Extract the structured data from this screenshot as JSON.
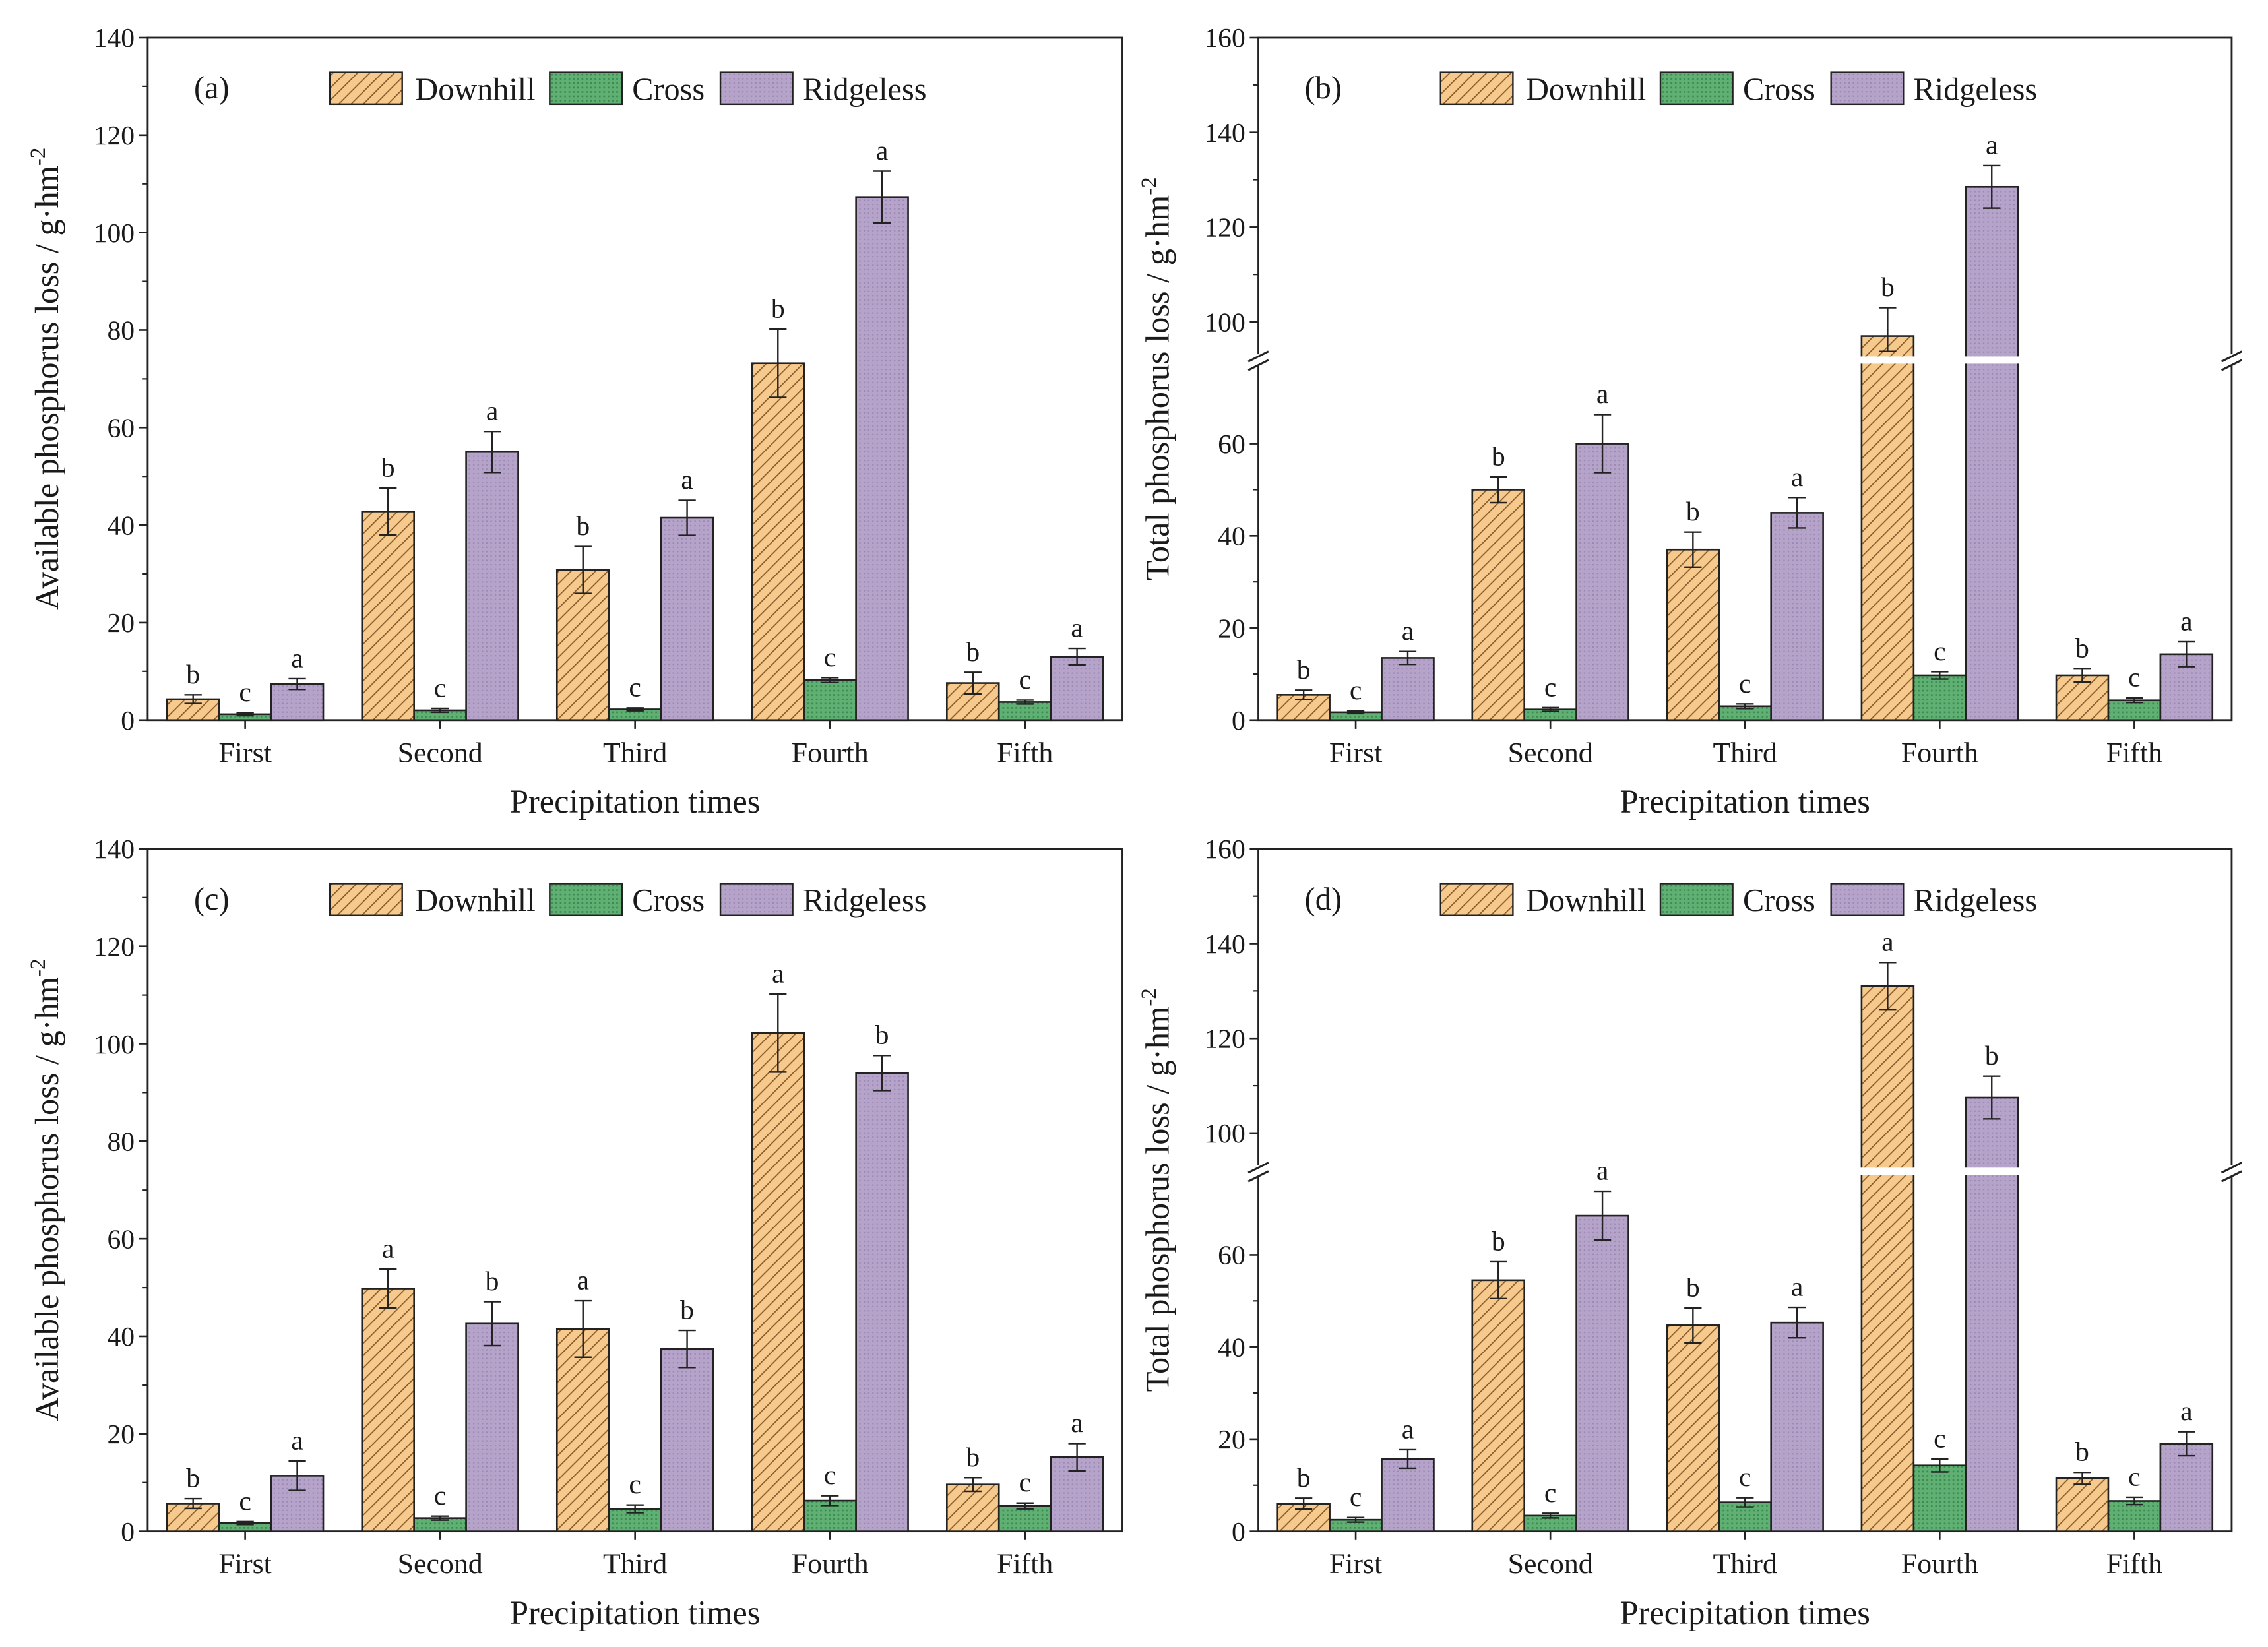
{
  "chart_data": [
    {
      "panel": "(a)",
      "type": "bar",
      "categories": [
        "First",
        "Second",
        "Third",
        "Fourth",
        "Fifth"
      ],
      "xlabel": "Precipitation times",
      "ylabel": "Available phosphorus loss / g·hm",
      "ylabel_sup": "-2",
      "ylim": [
        0,
        140
      ],
      "yticks": [
        0,
        20,
        40,
        60,
        80,
        100,
        120,
        140
      ],
      "axis_break": null,
      "series": [
        {
          "name": "Downhill",
          "values": [
            4.3,
            42.8,
            30.8,
            73.2,
            7.6
          ],
          "errors": [
            0.9,
            4.8,
            4.8,
            7.0,
            2.2
          ],
          "letters": [
            "b",
            "b",
            "b",
            "b",
            "b"
          ]
        },
        {
          "name": "Cross",
          "values": [
            1.2,
            2.0,
            2.2,
            8.2,
            3.7
          ],
          "errors": [
            0.3,
            0.4,
            0.3,
            0.5,
            0.4
          ],
          "letters": [
            "c",
            "c",
            "c",
            "c",
            "c"
          ]
        },
        {
          "name": "Ridgeless",
          "values": [
            7.4,
            55.0,
            41.5,
            107.3,
            13.0
          ],
          "errors": [
            1.1,
            4.2,
            3.6,
            5.3,
            1.7
          ],
          "letters": [
            "a",
            "a",
            "a",
            "a",
            "a"
          ]
        }
      ]
    },
    {
      "panel": "(b)",
      "type": "bar",
      "categories": [
        "First",
        "Second",
        "Third",
        "Fourth",
        "Fifth"
      ],
      "xlabel": "Precipitation times",
      "ylabel": "Total phosphorus loss / g·hm",
      "ylabel_sup": "-2",
      "ylim": [
        0,
        160
      ],
      "yticks": [
        0,
        20,
        40,
        60,
        100,
        120,
        140,
        160
      ],
      "axis_break": [
        75,
        95
      ],
      "series": [
        {
          "name": "Downhill",
          "values": [
            5.5,
            50.0,
            37.0,
            97.0,
            9.7
          ],
          "errors": [
            1.0,
            2.8,
            3.8,
            6.0,
            1.4
          ],
          "letters": [
            "b",
            "b",
            "b",
            "b",
            "b"
          ]
        },
        {
          "name": "Cross",
          "values": [
            1.7,
            2.3,
            3.0,
            9.7,
            4.3
          ],
          "errors": [
            0.3,
            0.4,
            0.5,
            0.8,
            0.5
          ],
          "letters": [
            "c",
            "c",
            "c",
            "c",
            "c"
          ]
        },
        {
          "name": "Ridgeless",
          "values": [
            13.5,
            60.0,
            45.0,
            128.5,
            14.3
          ],
          "errors": [
            1.4,
            6.3,
            3.3,
            4.5,
            2.7
          ],
          "letters": [
            "a",
            "a",
            "a",
            "a",
            "a"
          ]
        }
      ]
    },
    {
      "panel": "(c)",
      "type": "bar",
      "categories": [
        "First",
        "Second",
        "Third",
        "Fourth",
        "Fifth"
      ],
      "xlabel": "Precipitation times",
      "ylabel": "Available phosphorus loss / g·hm",
      "ylabel_sup": "-2",
      "ylim": [
        0,
        140
      ],
      "yticks": [
        0,
        20,
        40,
        60,
        80,
        100,
        120,
        140
      ],
      "axis_break": null,
      "series": [
        {
          "name": "Downhill",
          "values": [
            5.7,
            49.8,
            41.5,
            102.2,
            9.6
          ],
          "errors": [
            1.0,
            4.0,
            5.8,
            8.0,
            1.4
          ],
          "letters": [
            "b",
            "a",
            "a",
            "a",
            "b"
          ]
        },
        {
          "name": "Cross",
          "values": [
            1.7,
            2.7,
            4.6,
            6.3,
            5.2
          ],
          "errors": [
            0.3,
            0.4,
            0.8,
            1.0,
            0.6
          ],
          "letters": [
            "c",
            "c",
            "c",
            "c",
            "c"
          ]
        },
        {
          "name": "Ridgeless",
          "values": [
            11.4,
            42.6,
            37.4,
            94.0,
            15.2
          ],
          "errors": [
            3.0,
            4.5,
            3.8,
            3.6,
            2.8
          ],
          "letters": [
            "a",
            "b",
            "b",
            "b",
            "a"
          ]
        }
      ]
    },
    {
      "panel": "(d)",
      "type": "bar",
      "categories": [
        "First",
        "Second",
        "Third",
        "Fourth",
        "Fifth"
      ],
      "xlabel": "Precipitation times",
      "ylabel": "Total phosphorus loss / g·hm",
      "ylabel_sup": "-2",
      "ylim": [
        0,
        160
      ],
      "yticks": [
        0,
        20,
        40,
        60,
        100,
        120,
        140,
        160
      ],
      "axis_break": [
        75,
        95
      ],
      "series": [
        {
          "name": "Downhill",
          "values": [
            6.0,
            54.5,
            44.7,
            131.0,
            11.5
          ],
          "errors": [
            1.2,
            4.0,
            3.8,
            5.0,
            1.3
          ],
          "letters": [
            "b",
            "b",
            "b",
            "a",
            "b"
          ]
        },
        {
          "name": "Cross",
          "values": [
            2.5,
            3.4,
            6.3,
            14.3,
            6.6
          ],
          "errors": [
            0.5,
            0.5,
            1.0,
            1.4,
            0.8
          ],
          "letters": [
            "c",
            "c",
            "c",
            "c",
            "c"
          ]
        },
        {
          "name": "Ridgeless",
          "values": [
            15.7,
            68.5,
            45.3,
            107.5,
            19.0
          ],
          "errors": [
            2.0,
            5.3,
            3.3,
            4.5,
            2.6
          ],
          "letters": [
            "a",
            "a",
            "a",
            "b",
            "a"
          ]
        }
      ]
    }
  ],
  "colors": {
    "Downhill": "#f6c98c",
    "Cross": "#5aab6e",
    "Ridgeless": "#b19fc6",
    "axis": "#222222"
  }
}
